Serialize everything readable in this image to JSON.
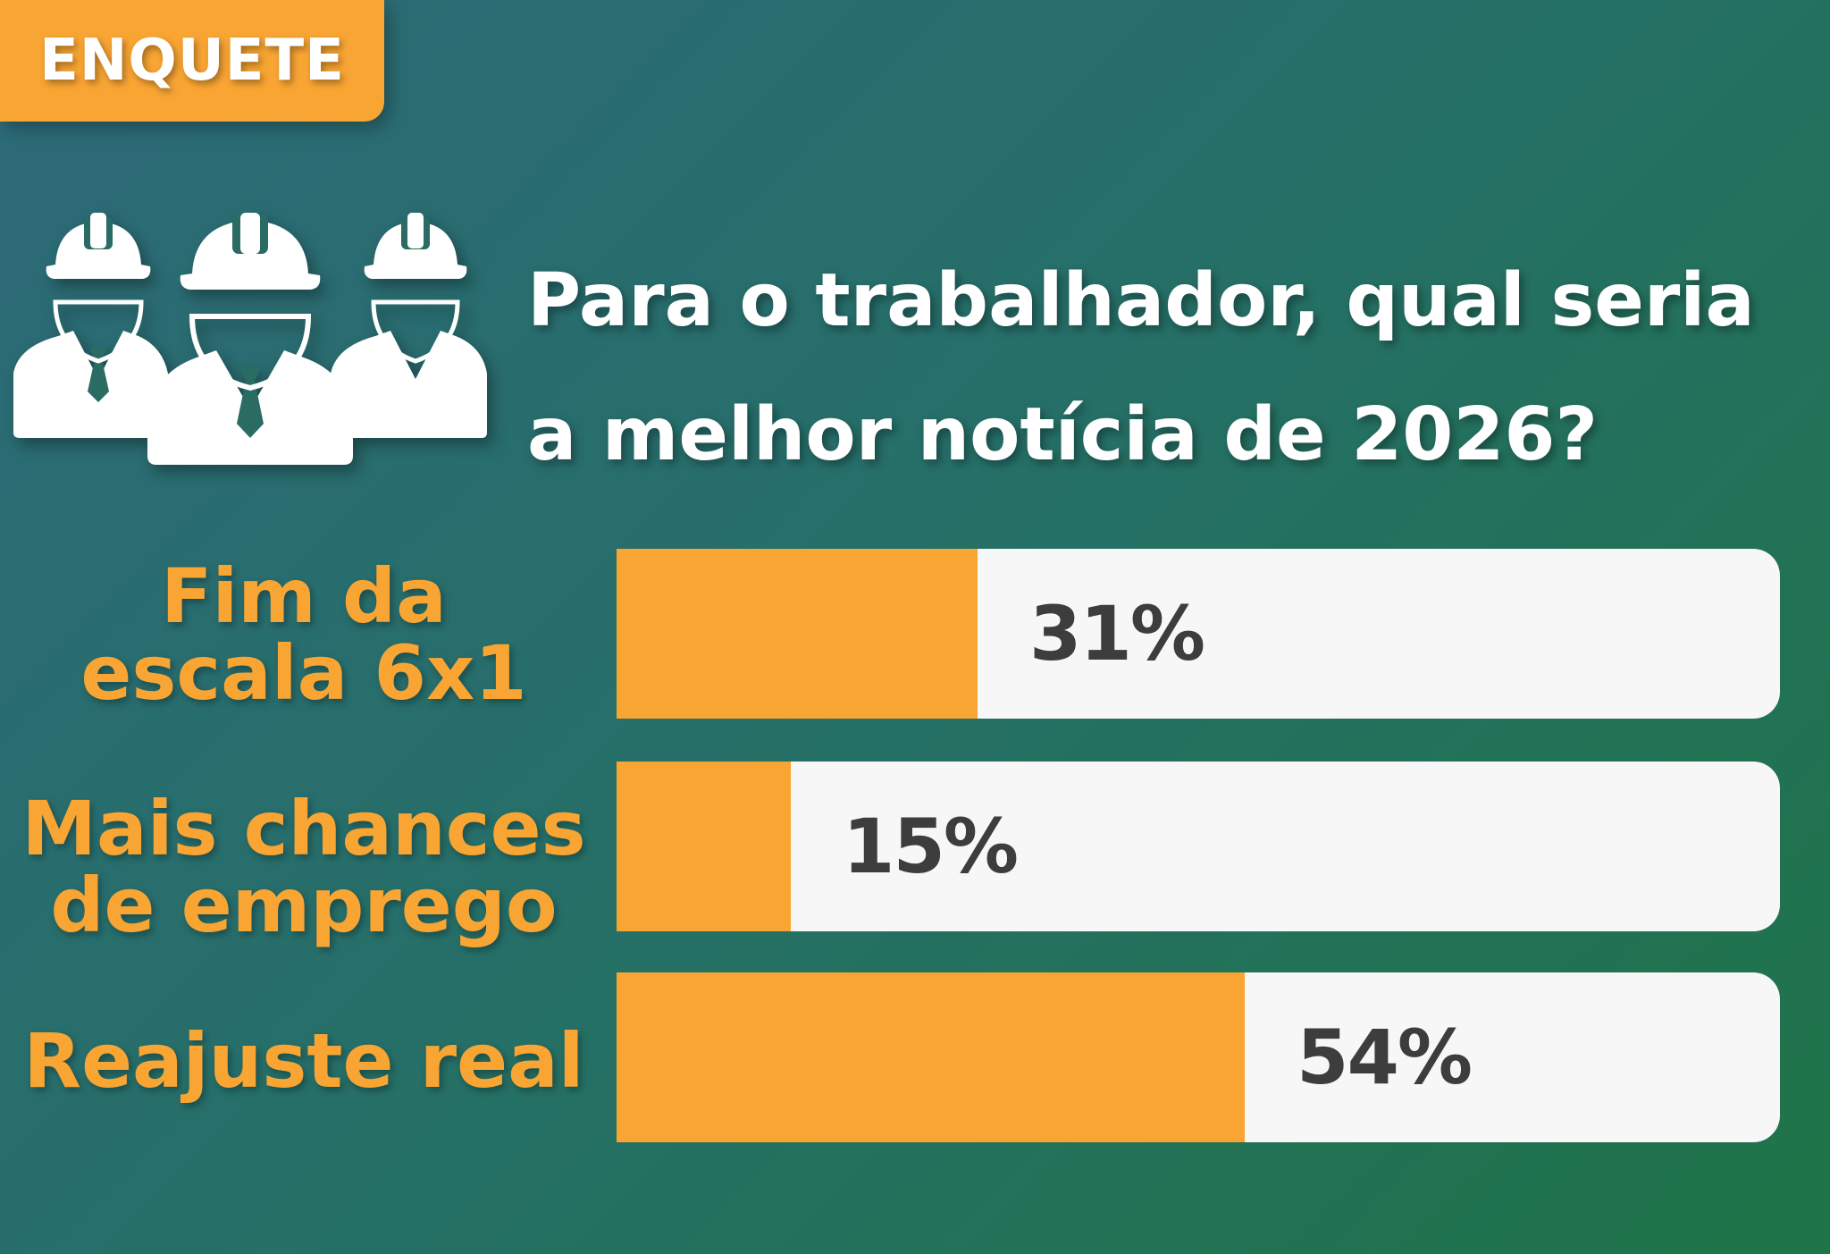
{
  "badge": {
    "label": "ENQUETE"
  },
  "question": {
    "line1": "Para o trabalhador, qual seria",
    "line2": "a melhor notícia de 2026?"
  },
  "icon": "construction-workers-icon",
  "colors": {
    "accent": "#f9a533",
    "bar_background": "#f7f7f7",
    "text_dark": "#3d3d3d",
    "text_light": "#ffffff"
  },
  "chart_data": {
    "type": "bar",
    "orientation": "horizontal",
    "categories": [
      "Fim da escala 6x1",
      "Mais chances de emprego",
      "Reajuste real"
    ],
    "values": [
      31,
      15,
      54
    ],
    "value_labels": [
      "31%",
      "15%",
      "54%"
    ],
    "label_lines": [
      [
        "Fim da",
        "escala 6x1"
      ],
      [
        "Mais chances",
        "de emprego"
      ],
      [
        "Reajuste real"
      ]
    ],
    "xlim": [
      0,
      100
    ],
    "unit": "%"
  }
}
